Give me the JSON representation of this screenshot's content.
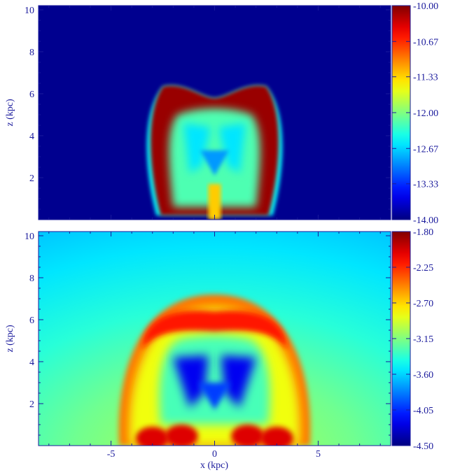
{
  "chart_data": [
    {
      "type": "heatmap",
      "title": "",
      "xlabel": "",
      "ylabel": "z (kpc)",
      "xlim": [
        -8.5,
        8.5
      ],
      "ylim": [
        0,
        10.2
      ],
      "x_ticks": [
        -5,
        0,
        5
      ],
      "x_tick_labels": [
        "",
        "",
        ""
      ],
      "y_ticks": [
        2,
        4,
        6,
        8,
        10
      ],
      "y_tick_labels": [
        "2",
        "4",
        "6",
        "8",
        "10"
      ],
      "colorbar": {
        "range": [
          -14.0,
          -10.0
        ],
        "ticks": [
          -10.0,
          -10.67,
          -11.33,
          -12.0,
          -12.67,
          -13.33,
          -14.0
        ],
        "tick_labels": [
          "-10.00",
          "-10.67",
          "-11.33",
          "-12.00",
          "-12.67",
          "-13.33",
          "-14.00"
        ]
      },
      "background_value": -14.0,
      "bubble": {
        "base_halfwidth_kpc": 2.6,
        "top_kpc": 6.35,
        "cusp_depth_kpc": 0.55,
        "shell_value": -10.1,
        "interior_value": -12.2,
        "cavity_value": -12.9,
        "jet_value": -11.3
      }
    },
    {
      "type": "heatmap",
      "title": "",
      "xlabel": "x (kpc)",
      "ylabel": "z (kpc)",
      "xlim": [
        -8.5,
        8.5
      ],
      "ylim": [
        0,
        10.2
      ],
      "x_ticks": [
        -5,
        0,
        5
      ],
      "x_tick_labels": [
        "-5",
        "0",
        "5"
      ],
      "y_ticks": [
        2,
        4,
        6,
        8,
        10
      ],
      "y_tick_labels": [
        "2",
        "4",
        "6",
        "8",
        "10"
      ],
      "colorbar": {
        "range": [
          -4.5,
          -1.8
        ],
        "ticks": [
          -1.8,
          -2.25,
          -2.7,
          -3.15,
          -3.6,
          -4.05,
          -4.5
        ],
        "tick_labels": [
          "-1.80",
          "-2.25",
          "-2.70",
          "-3.15",
          "-3.60",
          "-4.05",
          "-4.50"
        ]
      },
      "background_value_base": -2.75,
      "background_value_top": -3.55,
      "bubble": {
        "radius_kpc": 4.6,
        "top_kpc": 7.2,
        "shell_value": -2.2,
        "interior_value": -2.9,
        "cavity_value": -4.2
      }
    }
  ]
}
